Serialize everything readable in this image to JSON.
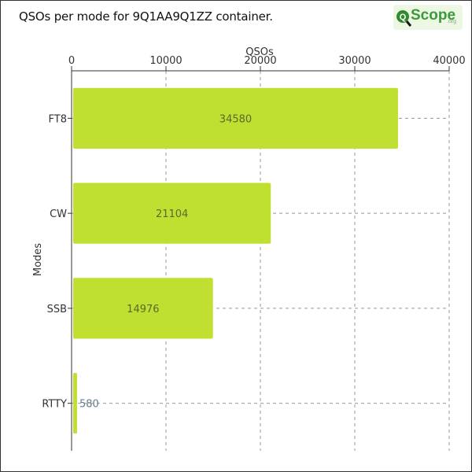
{
  "title": "QSOs per mode for 9Q1AA9Q1ZZ container.",
  "logo": {
    "text": "Scope",
    "suffix": ".org",
    "initial": "Q"
  },
  "chart_data": {
    "type": "bar",
    "orientation": "horizontal",
    "categories": [
      "FT8",
      "CW",
      "SSB",
      "RTTY"
    ],
    "values": [
      34580,
      21104,
      14976,
      580
    ],
    "xlabel": "QSOs",
    "ylabel": "Modes",
    "xlim": [
      0,
      40000
    ],
    "xticks": [
      0,
      10000,
      20000,
      30000,
      40000
    ],
    "x_axis_position": "top",
    "grid": true,
    "bar_color": "#bfe030",
    "label_color_inside": "#556b2f",
    "label_color_outside": "#5f7d8c"
  }
}
